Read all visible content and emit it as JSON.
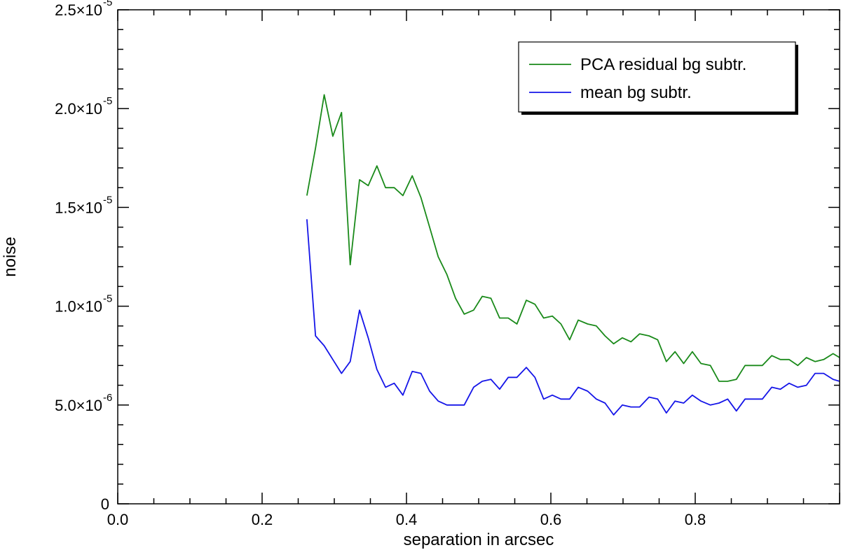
{
  "chart_data": {
    "type": "line",
    "xlabel": "separation in arcsec",
    "ylabel": "noise",
    "xlim": [
      0.0,
      1.0
    ],
    "ylim": [
      0,
      2.5e-05
    ],
    "x_ticks": [
      {
        "value": 0.0,
        "label": "0.0"
      },
      {
        "value": 0.2,
        "label": "0.2"
      },
      {
        "value": 0.4,
        "label": "0.4"
      },
      {
        "value": 0.6,
        "label": "0.6"
      },
      {
        "value": 0.8,
        "label": "0.8"
      }
    ],
    "y_ticks": [
      {
        "value": 0,
        "label": "0",
        "mantissa": "0",
        "exponent": ""
      },
      {
        "value": 5e-06,
        "label": "5.0×10-6",
        "mantissa": "5.0×10",
        "exponent": "-6"
      },
      {
        "value": 1e-05,
        "label": "1.0×10-5",
        "mantissa": "1.0×10",
        "exponent": "-5"
      },
      {
        "value": 1.5e-05,
        "label": "1.5×10-5",
        "mantissa": "1.5×10",
        "exponent": "-5"
      },
      {
        "value": 2e-05,
        "label": "2.0×10-5",
        "mantissa": "2.0×10",
        "exponent": "-5"
      },
      {
        "value": 2.5e-05,
        "label": "2.5×10-5",
        "mantissa": "2.5×10",
        "exponent": "-5"
      }
    ],
    "legend_position": "top-right",
    "series": [
      {
        "name": "PCA residual bg subtr.",
        "color": "#1a8a1a",
        "points": [
          [
            0.262,
            1.56e-05
          ],
          [
            0.274,
            1.8e-05
          ],
          [
            0.286,
            2.07e-05
          ],
          [
            0.298,
            1.86e-05
          ],
          [
            0.31,
            1.98e-05
          ],
          [
            0.322,
            1.21e-05
          ],
          [
            0.335,
            1.64e-05
          ],
          [
            0.347,
            1.61e-05
          ],
          [
            0.359,
            1.71e-05
          ],
          [
            0.371,
            1.6e-05
          ],
          [
            0.383,
            1.6e-05
          ],
          [
            0.395,
            1.56e-05
          ],
          [
            0.408,
            1.66e-05
          ],
          [
            0.42,
            1.55e-05
          ],
          [
            0.432,
            1.4e-05
          ],
          [
            0.444,
            1.25e-05
          ],
          [
            0.456,
            1.16e-05
          ],
          [
            0.468,
            1.04e-05
          ],
          [
            0.48,
            9.6e-06
          ],
          [
            0.493,
            9.8e-06
          ],
          [
            0.505,
            1.05e-05
          ],
          [
            0.517,
            1.04e-05
          ],
          [
            0.529,
            9.4e-06
          ],
          [
            0.541,
            9.4e-06
          ],
          [
            0.553,
            9.1e-06
          ],
          [
            0.566,
            1.03e-05
          ],
          [
            0.578,
            1.01e-05
          ],
          [
            0.59,
            9.4e-06
          ],
          [
            0.602,
            9.5e-06
          ],
          [
            0.614,
            9.1e-06
          ],
          [
            0.626,
            8.3e-06
          ],
          [
            0.638,
            9.3e-06
          ],
          [
            0.651,
            9.1e-06
          ],
          [
            0.663,
            9e-06
          ],
          [
            0.675,
            8.5e-06
          ],
          [
            0.687,
            8.1e-06
          ],
          [
            0.699,
            8.4e-06
          ],
          [
            0.711,
            8.2e-06
          ],
          [
            0.723,
            8.6e-06
          ],
          [
            0.736,
            8.5e-06
          ],
          [
            0.748,
            8.3e-06
          ],
          [
            0.76,
            7.2e-06
          ],
          [
            0.772,
            7.7e-06
          ],
          [
            0.784,
            7.1e-06
          ],
          [
            0.796,
            7.7e-06
          ],
          [
            0.808,
            7.1e-06
          ],
          [
            0.821,
            7e-06
          ],
          [
            0.833,
            6.2e-06
          ],
          [
            0.845,
            6.2e-06
          ],
          [
            0.857,
            6.3e-06
          ],
          [
            0.869,
            7e-06
          ],
          [
            0.881,
            7e-06
          ],
          [
            0.893,
            7e-06
          ],
          [
            0.906,
            7.5e-06
          ],
          [
            0.918,
            7.3e-06
          ],
          [
            0.93,
            7.3e-06
          ],
          [
            0.942,
            7e-06
          ],
          [
            0.954,
            7.4e-06
          ],
          [
            0.966,
            7.2e-06
          ],
          [
            0.978,
            7.3e-06
          ],
          [
            0.991,
            7.6e-06
          ],
          [
            1.0,
            7.4e-06
          ]
        ]
      },
      {
        "name": "mean bg subtr.",
        "color": "#1515e8",
        "points": [
          [
            0.262,
            1.44e-05
          ],
          [
            0.274,
            8.5e-06
          ],
          [
            0.286,
            8e-06
          ],
          [
            0.298,
            7.3e-06
          ],
          [
            0.31,
            6.6e-06
          ],
          [
            0.322,
            7.2e-06
          ],
          [
            0.335,
            9.8e-06
          ],
          [
            0.347,
            8.4e-06
          ],
          [
            0.359,
            6.8e-06
          ],
          [
            0.371,
            5.9e-06
          ],
          [
            0.383,
            6.1e-06
          ],
          [
            0.395,
            5.5e-06
          ],
          [
            0.408,
            6.7e-06
          ],
          [
            0.42,
            6.6e-06
          ],
          [
            0.432,
            5.7e-06
          ],
          [
            0.444,
            5.2e-06
          ],
          [
            0.456,
            5e-06
          ],
          [
            0.468,
            5e-06
          ],
          [
            0.48,
            5e-06
          ],
          [
            0.493,
            5.9e-06
          ],
          [
            0.505,
            6.2e-06
          ],
          [
            0.517,
            6.3e-06
          ],
          [
            0.529,
            5.8e-06
          ],
          [
            0.541,
            6.4e-06
          ],
          [
            0.553,
            6.4e-06
          ],
          [
            0.566,
            6.9e-06
          ],
          [
            0.578,
            6.4e-06
          ],
          [
            0.59,
            5.3e-06
          ],
          [
            0.602,
            5.5e-06
          ],
          [
            0.614,
            5.3e-06
          ],
          [
            0.626,
            5.3e-06
          ],
          [
            0.638,
            5.9e-06
          ],
          [
            0.651,
            5.7e-06
          ],
          [
            0.663,
            5.3e-06
          ],
          [
            0.675,
            5.1e-06
          ],
          [
            0.687,
            4.5e-06
          ],
          [
            0.699,
            5e-06
          ],
          [
            0.711,
            4.9e-06
          ],
          [
            0.723,
            4.9e-06
          ],
          [
            0.736,
            5.4e-06
          ],
          [
            0.748,
            5.3e-06
          ],
          [
            0.76,
            4.6e-06
          ],
          [
            0.772,
            5.2e-06
          ],
          [
            0.784,
            5.1e-06
          ],
          [
            0.796,
            5.5e-06
          ],
          [
            0.808,
            5.2e-06
          ],
          [
            0.821,
            5e-06
          ],
          [
            0.833,
            5.1e-06
          ],
          [
            0.845,
            5.3e-06
          ],
          [
            0.857,
            4.7e-06
          ],
          [
            0.869,
            5.3e-06
          ],
          [
            0.881,
            5.3e-06
          ],
          [
            0.893,
            5.3e-06
          ],
          [
            0.906,
            5.9e-06
          ],
          [
            0.918,
            5.8e-06
          ],
          [
            0.93,
            6.1e-06
          ],
          [
            0.942,
            5.9e-06
          ],
          [
            0.954,
            6e-06
          ],
          [
            0.966,
            6.6e-06
          ],
          [
            0.978,
            6.6e-06
          ],
          [
            0.991,
            6.3e-06
          ],
          [
            1.0,
            6.2e-06
          ]
        ]
      }
    ]
  }
}
